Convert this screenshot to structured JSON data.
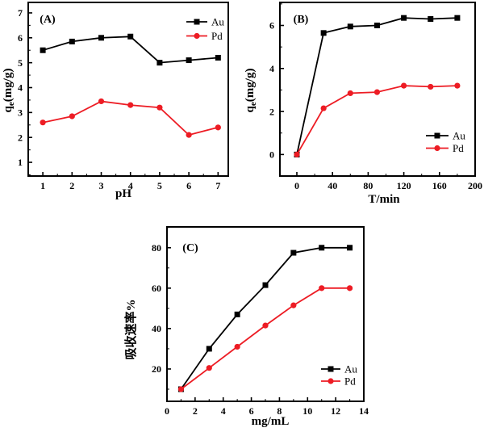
{
  "figure": {
    "background": "#ffffff",
    "series_colors": {
      "Au": "#000000",
      "Pd": "#ed1c24"
    },
    "axis_color": "#000000",
    "text_color": "#000000"
  },
  "chart_data": [
    {
      "id": "A",
      "type": "line",
      "panel_label": "(A)",
      "xlabel": "pH",
      "ylabel": {
        "pre": "q",
        "sub": "e",
        "post": "(mg/g)"
      },
      "xlim": [
        0.5,
        7.35
      ],
      "ylim": [
        0.45,
        7.42
      ],
      "xticks": [
        1,
        2,
        3,
        4,
        5,
        6,
        7
      ],
      "yticks": [
        1,
        2,
        3,
        4,
        5,
        6,
        7
      ],
      "xminor_step": 0.5,
      "yminor_step": 0.5,
      "grid": false,
      "legend_position": "top-right",
      "x": [
        1,
        2,
        3,
        4,
        5,
        6,
        7
      ],
      "series": [
        {
          "name": "Au",
          "marker": "square",
          "color": "#000000",
          "y": [
            5.5,
            5.85,
            6.0,
            6.05,
            5.0,
            5.1,
            5.2
          ]
        },
        {
          "name": "Pd",
          "marker": "circle",
          "color": "#ed1c24",
          "y": [
            2.6,
            2.85,
            3.45,
            3.3,
            3.2,
            2.1,
            2.4
          ]
        }
      ]
    },
    {
      "id": "B",
      "type": "line",
      "panel_label": "(B)",
      "xlabel": "T/min",
      "ylabel": {
        "pre": "q",
        "sub": "e",
        "post": "(mg/g)"
      },
      "xlim": [
        -19,
        200
      ],
      "ylim": [
        -1.0,
        7.07
      ],
      "xticks": [
        0,
        40,
        80,
        120,
        160,
        200
      ],
      "yticks": [
        0,
        2,
        4,
        6
      ],
      "xminor_step": 20,
      "yminor_step": 1,
      "grid": false,
      "legend_position": "bottom-right",
      "x": [
        0,
        30,
        60,
        90,
        120,
        150,
        180
      ],
      "series": [
        {
          "name": "Au",
          "marker": "square",
          "color": "#000000",
          "y": [
            0,
            5.65,
            5.95,
            6.0,
            6.35,
            6.3,
            6.35
          ]
        },
        {
          "name": "Pd",
          "marker": "circle",
          "color": "#ed1c24",
          "y": [
            0,
            2.15,
            2.85,
            2.9,
            3.2,
            3.15,
            3.2
          ]
        }
      ]
    },
    {
      "id": "C",
      "type": "line",
      "panel_label": "(C)",
      "xlabel": "mg/mL",
      "ylabel": {
        "pre": "吸收速率%",
        "sub": "",
        "post": ""
      },
      "xlim": [
        0,
        14
      ],
      "ylim": [
        4,
        90.3
      ],
      "xticks": [
        0,
        2,
        4,
        6,
        8,
        10,
        12,
        14
      ],
      "yticks": [
        20,
        40,
        60,
        80
      ],
      "xminor_step": 1,
      "yminor_step": 10,
      "grid": false,
      "legend_position": "bottom-right",
      "x": [
        1,
        3,
        5,
        7,
        9,
        11,
        13
      ],
      "series": [
        {
          "name": "Au",
          "marker": "square",
          "color": "#000000",
          "y": [
            10,
            30,
            47,
            61.5,
            77.5,
            80,
            80
          ]
        },
        {
          "name": "Pd",
          "marker": "circle",
          "color": "#ed1c24",
          "y": [
            10,
            20.5,
            31,
            41.5,
            51.5,
            60,
            60
          ]
        }
      ]
    }
  ]
}
